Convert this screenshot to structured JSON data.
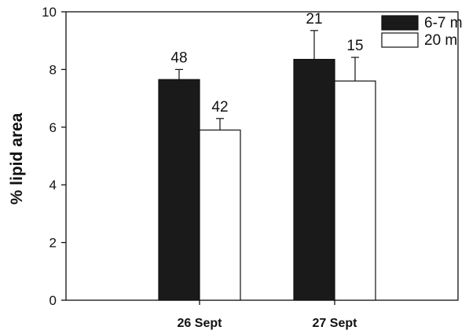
{
  "chart_data": {
    "type": "bar",
    "title": "",
    "xlabel": "",
    "ylabel": "% lipid area",
    "ylim": [
      0,
      10
    ],
    "yticks": [
      0,
      2,
      4,
      6,
      8,
      10
    ],
    "categories": [
      "26 Sept",
      "27 Sept"
    ],
    "series": [
      {
        "name": "6-7 m",
        "color": "#1a1a1a",
        "values": [
          7.65,
          8.35
        ],
        "errors": [
          0.35,
          1.0
        ],
        "labels": [
          "48",
          "21"
        ]
      },
      {
        "name": "20 m",
        "color": "#ffffff",
        "values": [
          5.9,
          7.6
        ],
        "errors": [
          0.4,
          0.82
        ],
        "labels": [
          "42",
          "15"
        ]
      }
    ],
    "legend": "top-right",
    "grid": false
  }
}
